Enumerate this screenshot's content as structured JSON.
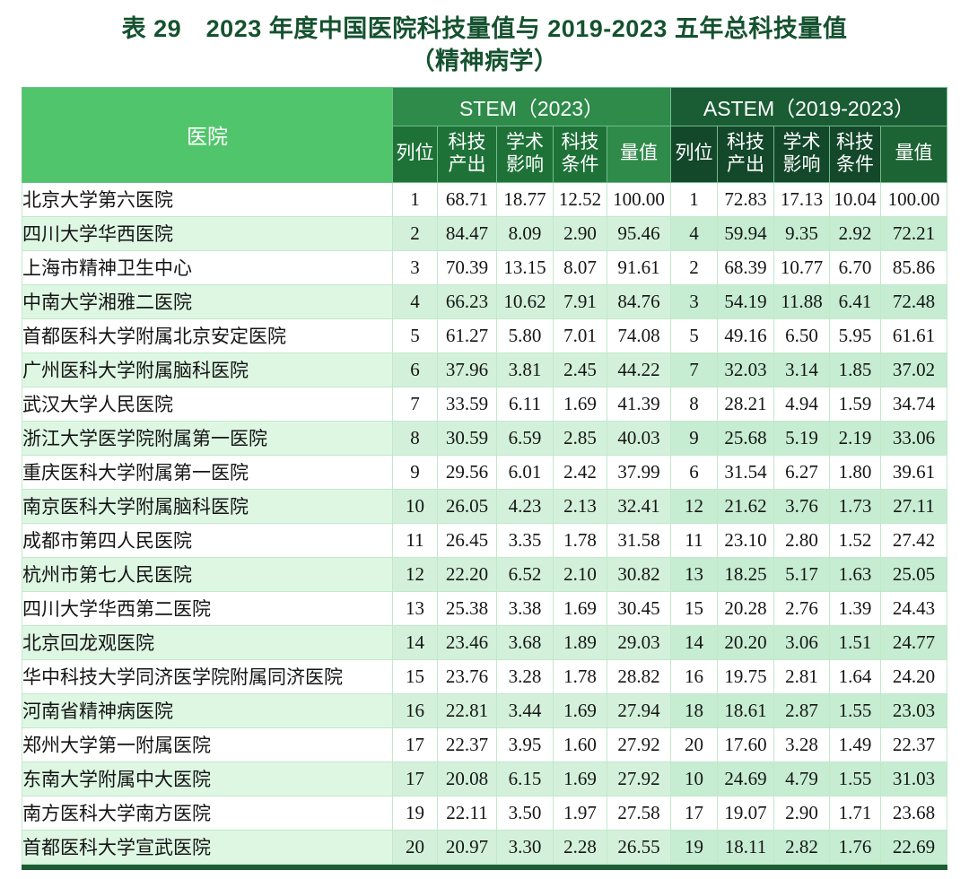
{
  "title": {
    "line1": "表 29　2023 年度中国医院科技量值与 2019-2023 五年总科技量值",
    "line2": "（精神病学）"
  },
  "table": {
    "hospital_header": "医院",
    "groups": [
      {
        "label": "STEM（2023）",
        "columns": [
          "列位",
          "科技\n产出",
          "学术\n影响",
          "科技\n条件",
          "量值"
        ]
      },
      {
        "label": "ASTEM（2019-2023）",
        "columns": [
          "列位",
          "科技\n产出",
          "学术\n影响",
          "科技\n条件",
          "量值"
        ]
      }
    ],
    "rows": [
      {
        "hospital": "北京大学第六医院",
        "stem": [
          "1",
          "68.71",
          "18.77",
          "12.52",
          "100.00"
        ],
        "astem": [
          "1",
          "72.83",
          "17.13",
          "10.04",
          "100.00"
        ]
      },
      {
        "hospital": "四川大学华西医院",
        "stem": [
          "2",
          "84.47",
          "8.09",
          "2.90",
          "95.46"
        ],
        "astem": [
          "4",
          "59.94",
          "9.35",
          "2.92",
          "72.21"
        ]
      },
      {
        "hospital": "上海市精神卫生中心",
        "stem": [
          "3",
          "70.39",
          "13.15",
          "8.07",
          "91.61"
        ],
        "astem": [
          "2",
          "68.39",
          "10.77",
          "6.70",
          "85.86"
        ]
      },
      {
        "hospital": "中南大学湘雅二医院",
        "stem": [
          "4",
          "66.23",
          "10.62",
          "7.91",
          "84.76"
        ],
        "astem": [
          "3",
          "54.19",
          "11.88",
          "6.41",
          "72.48"
        ]
      },
      {
        "hospital": "首都医科大学附属北京安定医院",
        "stem": [
          "5",
          "61.27",
          "5.80",
          "7.01",
          "74.08"
        ],
        "astem": [
          "5",
          "49.16",
          "6.50",
          "5.95",
          "61.61"
        ]
      },
      {
        "hospital": "广州医科大学附属脑科医院",
        "stem": [
          "6",
          "37.96",
          "3.81",
          "2.45",
          "44.22"
        ],
        "astem": [
          "7",
          "32.03",
          "3.14",
          "1.85",
          "37.02"
        ]
      },
      {
        "hospital": "武汉大学人民医院",
        "stem": [
          "7",
          "33.59",
          "6.11",
          "1.69",
          "41.39"
        ],
        "astem": [
          "8",
          "28.21",
          "4.94",
          "1.59",
          "34.74"
        ]
      },
      {
        "hospital": "浙江大学医学院附属第一医院",
        "stem": [
          "8",
          "30.59",
          "6.59",
          "2.85",
          "40.03"
        ],
        "astem": [
          "9",
          "25.68",
          "5.19",
          "2.19",
          "33.06"
        ]
      },
      {
        "hospital": "重庆医科大学附属第一医院",
        "stem": [
          "9",
          "29.56",
          "6.01",
          "2.42",
          "37.99"
        ],
        "astem": [
          "6",
          "31.54",
          "6.27",
          "1.80",
          "39.61"
        ]
      },
      {
        "hospital": "南京医科大学附属脑科医院",
        "stem": [
          "10",
          "26.05",
          "4.23",
          "2.13",
          "32.41"
        ],
        "astem": [
          "12",
          "21.62",
          "3.76",
          "1.73",
          "27.11"
        ]
      },
      {
        "hospital": "成都市第四人民医院",
        "stem": [
          "11",
          "26.45",
          "3.35",
          "1.78",
          "31.58"
        ],
        "astem": [
          "11",
          "23.10",
          "2.80",
          "1.52",
          "27.42"
        ]
      },
      {
        "hospital": "杭州市第七人民医院",
        "stem": [
          "12",
          "22.20",
          "6.52",
          "2.10",
          "30.82"
        ],
        "astem": [
          "13",
          "18.25",
          "5.17",
          "1.63",
          "25.05"
        ]
      },
      {
        "hospital": "四川大学华西第二医院",
        "stem": [
          "13",
          "25.38",
          "3.38",
          "1.69",
          "30.45"
        ],
        "astem": [
          "15",
          "20.28",
          "2.76",
          "1.39",
          "24.43"
        ]
      },
      {
        "hospital": "北京回龙观医院",
        "stem": [
          "14",
          "23.46",
          "3.68",
          "1.89",
          "29.03"
        ],
        "astem": [
          "14",
          "20.20",
          "3.06",
          "1.51",
          "24.77"
        ]
      },
      {
        "hospital": "华中科技大学同济医学院附属同济医院",
        "stem": [
          "15",
          "23.76",
          "3.28",
          "1.78",
          "28.82"
        ],
        "astem": [
          "16",
          "19.75",
          "2.81",
          "1.64",
          "24.20"
        ]
      },
      {
        "hospital": "河南省精神病医院",
        "stem": [
          "16",
          "22.81",
          "3.44",
          "1.69",
          "27.94"
        ],
        "astem": [
          "18",
          "18.61",
          "2.87",
          "1.55",
          "23.03"
        ]
      },
      {
        "hospital": "郑州大学第一附属医院",
        "stem": [
          "17",
          "22.37",
          "3.95",
          "1.60",
          "27.92"
        ],
        "astem": [
          "20",
          "17.60",
          "3.28",
          "1.49",
          "22.37"
        ]
      },
      {
        "hospital": "东南大学附属中大医院",
        "stem": [
          "17",
          "20.08",
          "6.15",
          "1.69",
          "27.92"
        ],
        "astem": [
          "10",
          "24.69",
          "4.79",
          "1.55",
          "31.03"
        ]
      },
      {
        "hospital": "南方医科大学南方医院",
        "stem": [
          "19",
          "22.11",
          "3.50",
          "1.97",
          "27.58"
        ],
        "astem": [
          "17",
          "19.07",
          "2.90",
          "1.71",
          "23.68"
        ]
      },
      {
        "hospital": "首都医科大学宣武医院",
        "stem": [
          "20",
          "20.97",
          "3.30",
          "2.28",
          "26.55"
        ],
        "astem": [
          "19",
          "18.11",
          "2.82",
          "1.76",
          "22.69"
        ]
      }
    ]
  },
  "colors": {
    "title_text": "#15522f",
    "hospital_header_bg": "#50c56b",
    "stem_group_bg": "#2e8b4a",
    "stem_sub_bg": "#1e7238",
    "stem_value_sub_bg": "#2f8b4a",
    "astem_group_bg": "#1a5c34",
    "astem_sub_bg": "#13482a",
    "astem_value_sub_bg": "#1d6434",
    "stripe_hospital_bg": "#def7e3",
    "stripe_stem_bg": "#d3f1da",
    "stripe_astem_bg": "#c6edd2",
    "bottom_bar": "#1b5e34"
  }
}
